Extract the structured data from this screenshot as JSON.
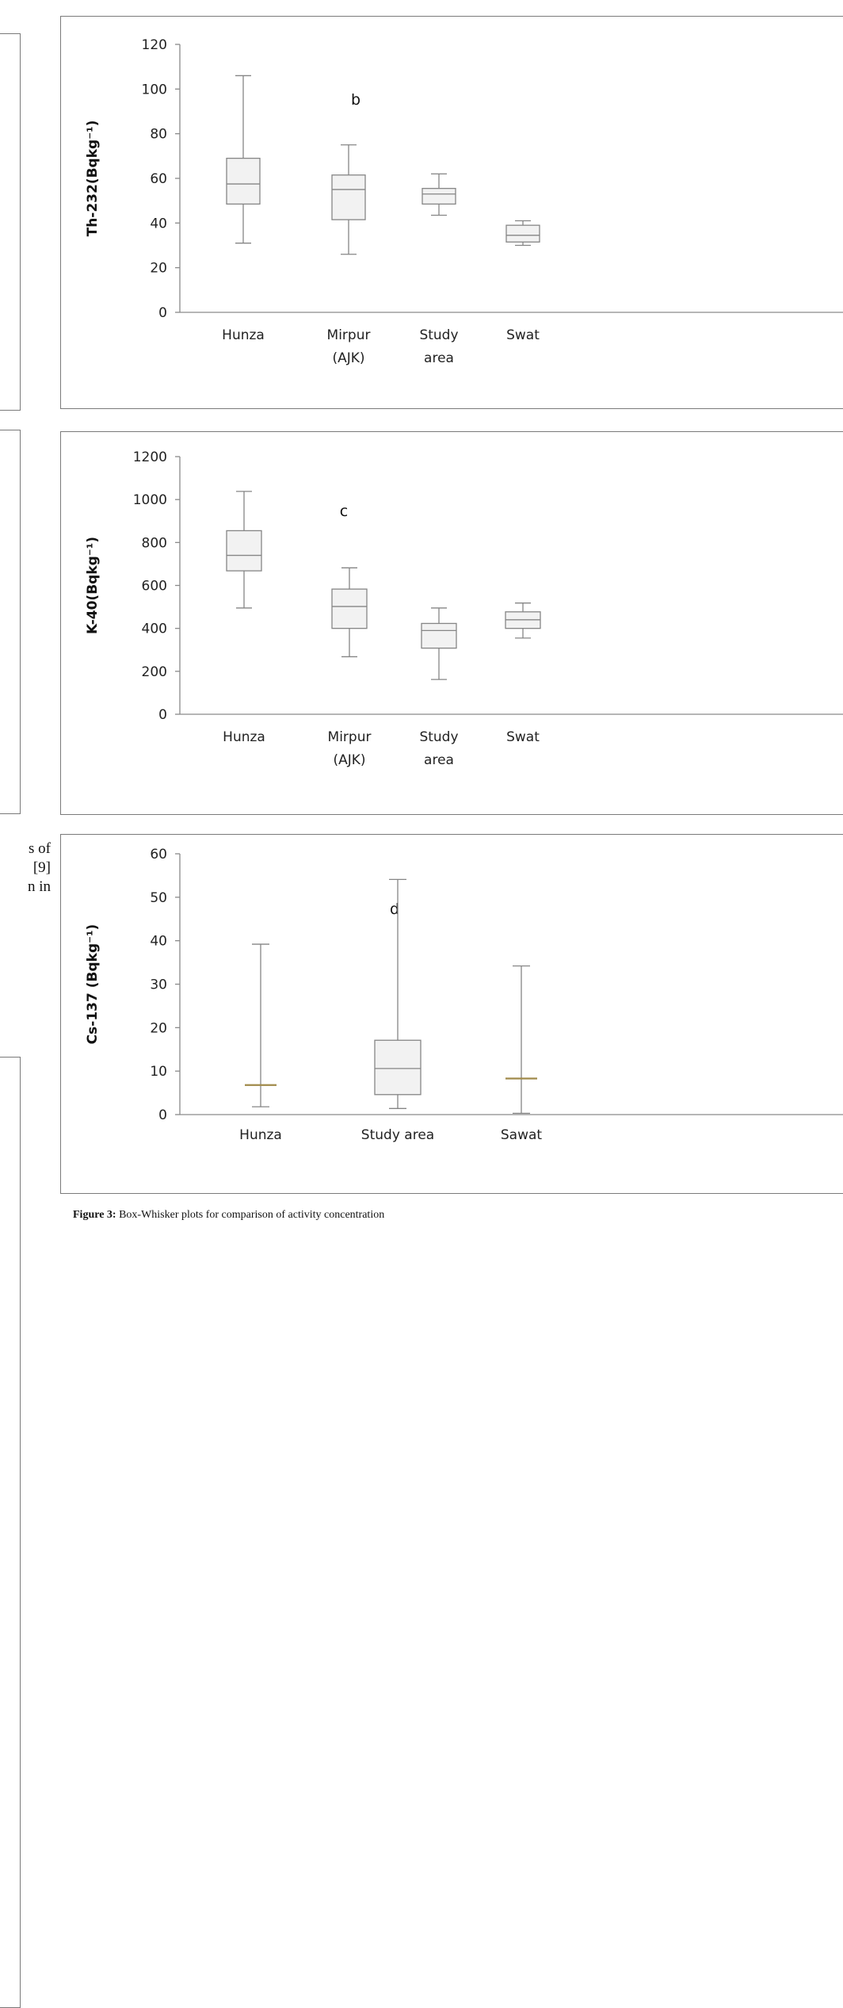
{
  "side_text": [
    "s of",
    "[9]",
    "n in"
  ],
  "caption": {
    "label": "Figure 3:",
    "text": "Box-Whisker plots for comparison of activity concentration"
  },
  "chart_data": [
    {
      "type": "box",
      "panel_label": "b",
      "ylabel": "Th-232(Bqkg⁻¹)",
      "ylim": [
        0,
        120
      ],
      "yticks": [
        0,
        20,
        40,
        60,
        80,
        100,
        120
      ],
      "categories": [
        [
          "Hunza"
        ],
        [
          "Mirpur",
          "(AJK)"
        ],
        [
          "Study",
          "area"
        ],
        [
          "Swat"
        ]
      ],
      "boxes": [
        {
          "min": 31,
          "q1": 48.5,
          "median": 57.5,
          "q3": 69,
          "max": 106
        },
        {
          "min": 26,
          "q1": 41.5,
          "median": 55,
          "q3": 61.5,
          "max": 75
        },
        {
          "min": 43.5,
          "q1": 48.5,
          "median": 53,
          "q3": 55.5,
          "max": 62
        },
        {
          "min": 30,
          "q1": 31.5,
          "median": 34.5,
          "q3": 39,
          "max": 41
        }
      ],
      "colors": {
        "box_fill": "#f2f2f2",
        "line": "#858585",
        "axis": "#8a8a8a"
      }
    },
    {
      "type": "box",
      "panel_label": "c",
      "ylabel": "K-40(Bqkg⁻¹)",
      "ylim": [
        0,
        1200
      ],
      "yticks": [
        0,
        200,
        400,
        600,
        800,
        1000,
        1200
      ],
      "categories": [
        [
          "Hunza"
        ],
        [
          "Mirpur",
          "(AJK)"
        ],
        [
          "Study",
          "area"
        ],
        [
          "Swat"
        ]
      ],
      "boxes": [
        {
          "min": 495,
          "q1": 668,
          "median": 740,
          "q3": 855,
          "max": 1038
        },
        {
          "min": 268,
          "q1": 400,
          "median": 502,
          "q3": 583,
          "max": 682
        },
        {
          "min": 162,
          "q1": 308,
          "median": 390,
          "q3": 423,
          "max": 495
        },
        {
          "min": 355,
          "q1": 400,
          "median": 440,
          "q3": 477,
          "max": 518
        }
      ],
      "colors": {
        "box_fill": "#f2f2f2",
        "line": "#858585",
        "axis": "#8a8a8a"
      }
    },
    {
      "type": "box",
      "panel_label": "d",
      "ylabel": "Cs-137 (Bqkg⁻¹)",
      "ylim": [
        0,
        60
      ],
      "yticks": [
        0,
        10,
        20,
        30,
        40,
        50,
        60
      ],
      "categories": [
        [
          "Hunza"
        ],
        [
          "Study area"
        ],
        [
          "Sawat"
        ]
      ],
      "boxes": [
        {
          "min": 1.8,
          "q1": 6.8,
          "median": 6.8,
          "q3": 6.8,
          "max": 39.2
        },
        {
          "min": 1.4,
          "q1": 4.6,
          "median": 10.6,
          "q3": 17.1,
          "max": 54.1
        },
        {
          "min": 0.3,
          "q1": 8.3,
          "median": 8.3,
          "q3": 8.3,
          "max": 34.2
        }
      ],
      "colors": {
        "box_fill": "#f2f2f2",
        "line": "#858585",
        "axis": "#8a8a8a",
        "median_flat": "#a08a4a"
      }
    }
  ]
}
